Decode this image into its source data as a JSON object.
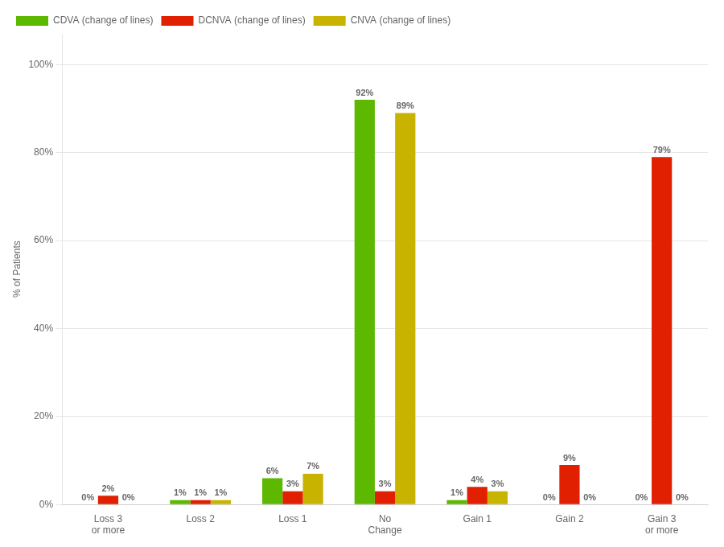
{
  "chart_data": {
    "type": "bar",
    "categories": [
      "Loss 3\nor more",
      "Loss 2",
      "Loss 1",
      "No\nChange",
      "Gain 1",
      "Gain 2",
      "Gain 3\nor more"
    ],
    "series": [
      {
        "name": "CDVA (change of lines)",
        "color": "#5cb800",
        "values": [
          0,
          1,
          6,
          92,
          1,
          0,
          0
        ],
        "value_labels": [
          "0%",
          "1%",
          "6%",
          "92%",
          "1%",
          "0%",
          "0%"
        ]
      },
      {
        "name": "DCNVA (change of lines)",
        "color": "#e02000",
        "values": [
          2,
          1,
          3,
          3,
          4,
          9,
          79
        ],
        "value_labels": [
          "2%",
          "1%",
          "3%",
          "3%",
          "4%",
          "9%",
          "79%"
        ]
      },
      {
        "name": "CNVA (change of lines)",
        "color": "#c8b400",
        "values": [
          0,
          1,
          7,
          89,
          3,
          0,
          0
        ],
        "value_labels": [
          "0%",
          "1%",
          "7%",
          "89%",
          "3%",
          "0%",
          "0%"
        ]
      }
    ],
    "ylabel": "% of Patients",
    "ylim": [
      0,
      107
    ],
    "yticks": [
      {
        "value": 0,
        "label": "0%"
      },
      {
        "value": 20,
        "label": "20%"
      },
      {
        "value": 40,
        "label": "40%"
      },
      {
        "value": 60,
        "label": "60%"
      },
      {
        "value": 80,
        "label": "80%"
      },
      {
        "value": 100,
        "label": "100%"
      }
    ],
    "grid": true,
    "legend": "upper left",
    "data_labels": true
  }
}
